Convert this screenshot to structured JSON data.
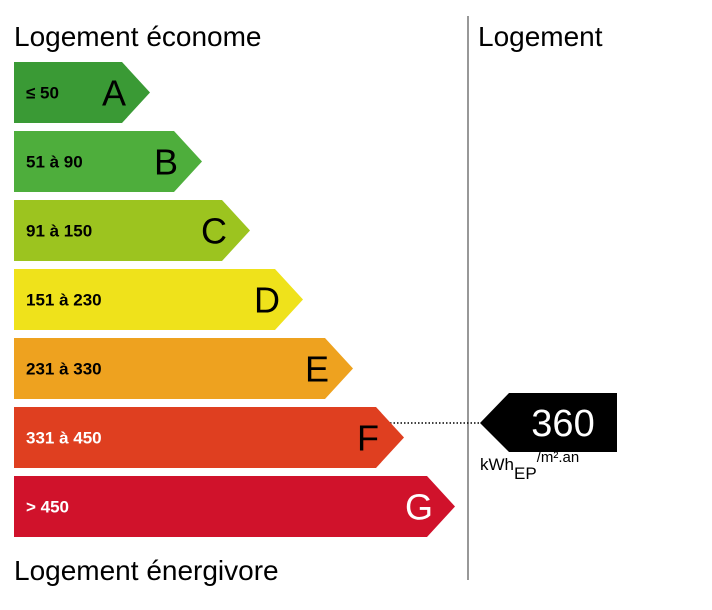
{
  "header": {
    "top_label": "Logement économe",
    "bottom_label": "Logement énergivore",
    "column_title": "Logement"
  },
  "classes": [
    {
      "range": "≤ 50",
      "letter": "A"
    },
    {
      "range": "51 à 90",
      "letter": "B"
    },
    {
      "range": "91 à 150",
      "letter": "C"
    },
    {
      "range": "151 à 230",
      "letter": "D"
    },
    {
      "range": "231 à 330",
      "letter": "E"
    },
    {
      "range": "331 à 450",
      "letter": "F"
    },
    {
      "range": "> 450",
      "letter": "G"
    }
  ],
  "result": {
    "value": "360",
    "unit_main": "kWh",
    "unit_sub": "EP",
    "unit_sup": "/m².an"
  }
}
